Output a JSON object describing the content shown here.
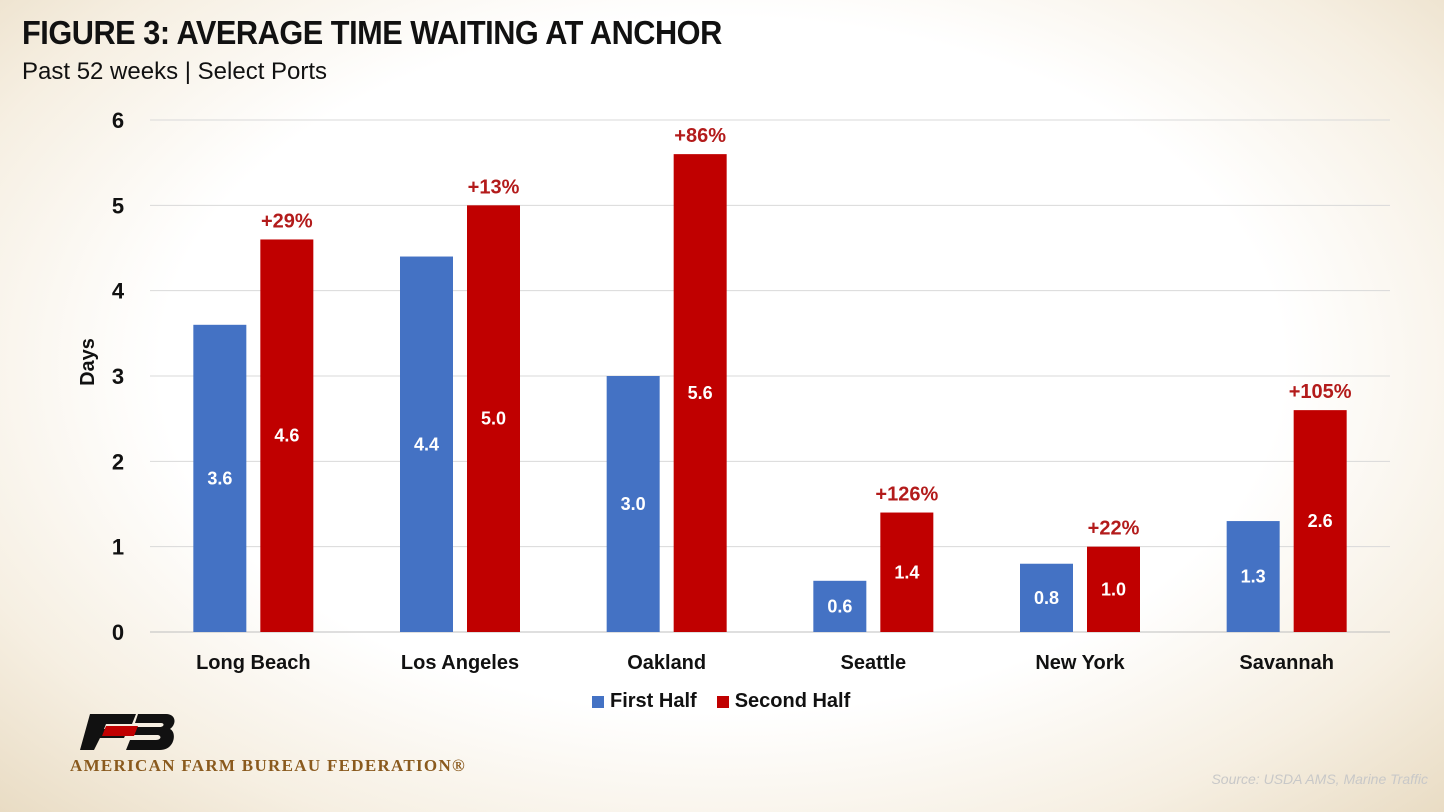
{
  "title": "FIGURE 3: AVERAGE TIME WAITING AT ANCHOR",
  "subtitle": "Past 52 weeks | Select Ports",
  "colors": {
    "first_half": "#4472c4",
    "second_half": "#c00000",
    "pct_text": "#b31b1b",
    "brand": "#8a5a1e"
  },
  "logo_text": "AMERICAN FARM BUREAU FEDERATION®",
  "source": "Source: USDA AMS, Marine Traffic",
  "chart_data": {
    "type": "bar",
    "title": "",
    "xlabel": "",
    "ylabel": "Days",
    "ylim": [
      0,
      6
    ],
    "yticks": [
      0,
      1,
      2,
      3,
      4,
      5,
      6
    ],
    "grid": true,
    "legend_position": "bottom",
    "categories": [
      "Long Beach",
      "Los Angeles",
      "Oakland",
      "Seattle",
      "New York",
      "Savannah"
    ],
    "series": [
      {
        "name": "First Half",
        "values": [
          3.6,
          4.4,
          3.0,
          0.6,
          0.8,
          1.3
        ],
        "labels": [
          "3.6",
          "4.4",
          "3.0",
          "0.6",
          "0.8",
          "1.3"
        ]
      },
      {
        "name": "Second Half",
        "values": [
          4.6,
          5.0,
          5.6,
          1.4,
          1.0,
          2.6
        ],
        "labels": [
          "4.6",
          "5.0",
          "5.6",
          "1.4",
          "1.0",
          "2.6"
        ]
      }
    ],
    "annotations": [
      "+29%",
      "+13%",
      "+86%",
      "+126%",
      "+22%",
      "+105%"
    ]
  }
}
